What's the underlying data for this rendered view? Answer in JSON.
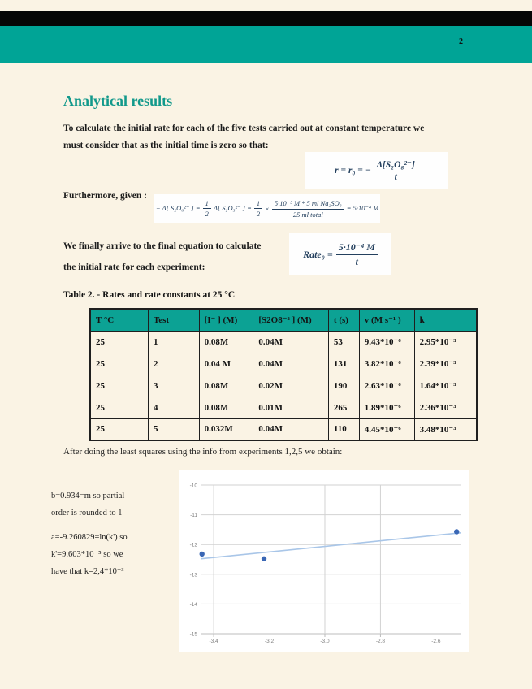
{
  "page": {
    "number": "2"
  },
  "colors": {
    "band_teal": "#00a496",
    "table_header_teal": "#0ca294",
    "page_cream": "#faf3e4",
    "title_teal": "#12998b",
    "equation_navy": "#24405e",
    "point_blue": "#3a67b5",
    "trend_blue": "#a9c6e8",
    "grid_gray": "#d2d2d2"
  },
  "title": "Analytical results",
  "intro": {
    "lines": [
      "To calculate the initial rate for each of the five tests carried out at constant temperature we",
      "must consider that as the initial time is zero so that:"
    ]
  },
  "eq1": {
    "lhs": "r = r₀ = −",
    "num": "Δ[S₂O₈²⁻]",
    "den": "t"
  },
  "furthermore": "Furthermore, given :",
  "eq2": {
    "term1": "− Δ[ S₂O₈²⁻ ] =",
    "half1": {
      "num": "1",
      "den": "2"
    },
    "term2": "Δ[ S₂O₃²⁻ ] =",
    "half2": {
      "num": "1",
      "den": "2"
    },
    "times": "×",
    "frac": {
      "num": "5·10⁻³ M * 5 ml Na₂SO₃",
      "den": "25 ml total"
    },
    "result": "= 5·10⁻⁴ M"
  },
  "finally": {
    "lines": [
      "We finally arrive to the final equation to calculate",
      "the initial rate for each experiment:"
    ]
  },
  "eq3": {
    "lhs": "Rate₀ =",
    "num": "5·10⁻⁴ M",
    "den": "t"
  },
  "table": {
    "caption": "Table 2. - Rates and rate constants at 25 °C",
    "headers": [
      "T  °C",
      "Test",
      "[I⁻ ] (M)",
      "[S2O8⁻² ] (M)",
      "t (s)",
      "v (M s⁻¹ )",
      "k"
    ],
    "rows": [
      [
        "25",
        "1",
        "0.08M",
        "0.04M",
        "53",
        "9.43*10⁻⁶",
        "2.95*10⁻³"
      ],
      [
        "25",
        "2",
        "0.04 M",
        "0.04M",
        "131",
        "3.82*10⁻⁶",
        "2.39*10⁻³"
      ],
      [
        "25",
        "3",
        "0.08M",
        "0.02M",
        "190",
        "2.63*10⁻⁶",
        "1.64*10⁻³"
      ],
      [
        "25",
        "4",
        "0.08M",
        "0.01M",
        "265",
        "1.89*10⁻⁶",
        "2.36*10⁻³"
      ],
      [
        "25",
        "5",
        "0.032M",
        "0.04M",
        "110",
        "4.45*10⁻⁶",
        "3.48*10⁻³"
      ]
    ]
  },
  "after_table": "After doing the least squares using the info from experiments 1,2,5 we obtain:",
  "analysis": {
    "p1": [
      "b=0.934=m so partial",
      "order is rounded to 1"
    ],
    "p2": [
      "a=-9.260829=ln(k') so",
      "k'=9.603*10⁻⁵ so we",
      "have that k=2,4*10⁻³"
    ]
  },
  "chart_data": {
    "type": "scatter",
    "title": "",
    "xlabel": "",
    "ylabel": "",
    "points": [
      {
        "x": -3.442,
        "y": -12.32
      },
      {
        "x": -3.219,
        "y": -12.48
      },
      {
        "x": -2.526,
        "y": -11.57
      }
    ],
    "trendline": {
      "slope": 0.934,
      "intercept": -9.260829,
      "x_start": -3.447,
      "x_end": -2.512
    },
    "xlim": [
      -3.447,
      -2.512
    ],
    "ylim": [
      -15,
      -10
    ],
    "x_ticks": [
      -3.4,
      -3.2,
      -3.0,
      -2.8,
      -2.6
    ],
    "x_tick_labels": [
      "-3,4",
      "-3,2",
      "-3,0",
      "-2,8",
      "-2,6"
    ],
    "x_gridlines": [
      -3.4,
      -3.0,
      -2.8
    ],
    "y_ticks": [
      -10,
      -11,
      -12,
      -13,
      -14,
      -15
    ],
    "y_tick_labels": [
      "-10",
      "-11",
      "-12",
      "-13",
      "-14",
      "-15"
    ],
    "grid": true,
    "legend": "none",
    "point_color": "#3a67b5",
    "trend_color": "#a9c6e8",
    "grid_color": "#d2d2d2"
  }
}
